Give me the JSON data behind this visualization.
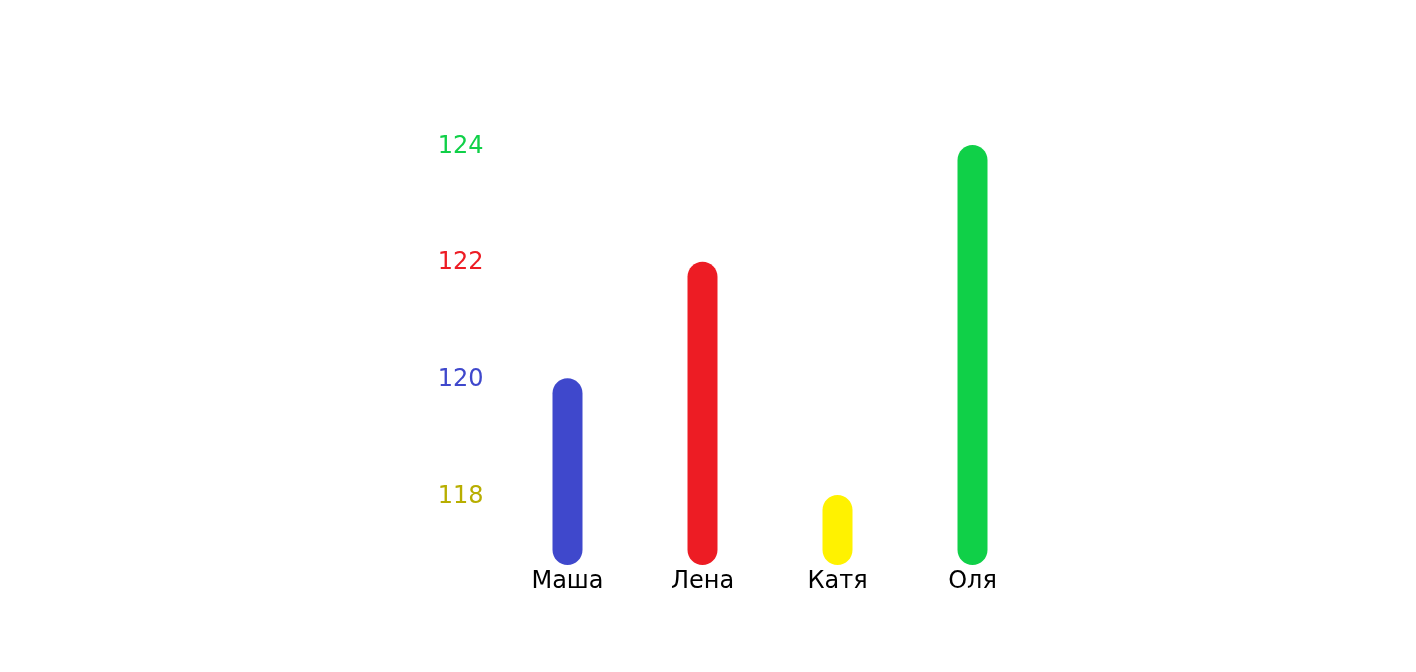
{
  "chart_data": {
    "type": "bar",
    "categories": [
      "Маша",
      "Лена",
      "Катя",
      "Оля"
    ],
    "values": [
      120,
      122,
      118,
      124
    ],
    "colors": [
      "#3f48cc",
      "#ed1c24",
      "#fff200",
      "#10d048"
    ],
    "ylim": [
      116.8,
      124
    ],
    "yticks": [
      118,
      120,
      122,
      124
    ]
  }
}
